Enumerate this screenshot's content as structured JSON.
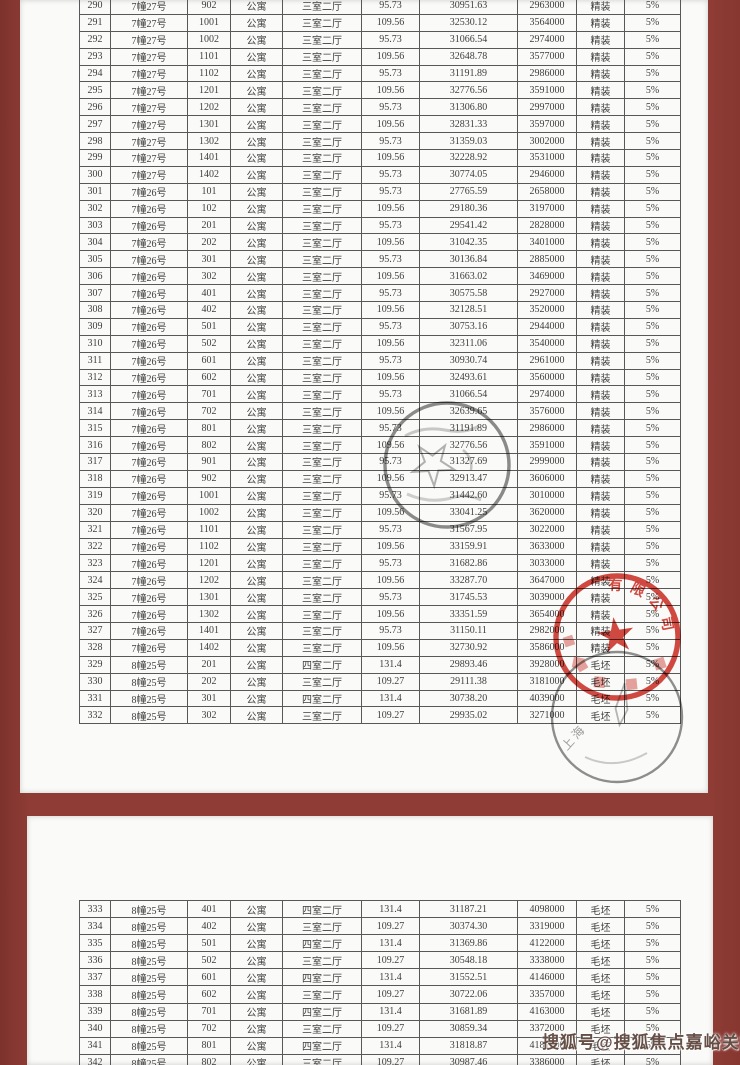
{
  "document": {
    "frame_color": "#8e3c35",
    "paper_color": "#fafaf8"
  },
  "price_table": {
    "page1_rows": [
      [
        "290",
        "7幢27号",
        "902",
        "公寓",
        "三室二厅",
        "95.73",
        "30951.63",
        "2963000",
        "精装",
        "5%"
      ],
      [
        "291",
        "7幢27号",
        "1001",
        "公寓",
        "三室二厅",
        "109.56",
        "32530.12",
        "3564000",
        "精装",
        "5%"
      ],
      [
        "292",
        "7幢27号",
        "1002",
        "公寓",
        "三室二厅",
        "95.73",
        "31066.54",
        "2974000",
        "精装",
        "5%"
      ],
      [
        "293",
        "7幢27号",
        "1101",
        "公寓",
        "三室二厅",
        "109.56",
        "32648.78",
        "3577000",
        "精装",
        "5%"
      ],
      [
        "294",
        "7幢27号",
        "1102",
        "公寓",
        "三室二厅",
        "95.73",
        "31191.89",
        "2986000",
        "精装",
        "5%"
      ],
      [
        "295",
        "7幢27号",
        "1201",
        "公寓",
        "三室二厅",
        "109.56",
        "32776.56",
        "3591000",
        "精装",
        "5%"
      ],
      [
        "296",
        "7幢27号",
        "1202",
        "公寓",
        "三室二厅",
        "95.73",
        "31306.80",
        "2997000",
        "精装",
        "5%"
      ],
      [
        "297",
        "7幢27号",
        "1301",
        "公寓",
        "三室二厅",
        "109.56",
        "32831.33",
        "3597000",
        "精装",
        "5%"
      ],
      [
        "298",
        "7幢27号",
        "1302",
        "公寓",
        "三室二厅",
        "95.73",
        "31359.03",
        "3002000",
        "精装",
        "5%"
      ],
      [
        "299",
        "7幢27号",
        "1401",
        "公寓",
        "三室二厅",
        "109.56",
        "32228.92",
        "3531000",
        "精装",
        "5%"
      ],
      [
        "300",
        "7幢27号",
        "1402",
        "公寓",
        "三室二厅",
        "95.73",
        "30774.05",
        "2946000",
        "精装",
        "5%"
      ],
      [
        "301",
        "7幢26号",
        "101",
        "公寓",
        "三室二厅",
        "95.73",
        "27765.59",
        "2658000",
        "精装",
        "5%"
      ],
      [
        "302",
        "7幢26号",
        "102",
        "公寓",
        "三室二厅",
        "109.56",
        "29180.36",
        "3197000",
        "精装",
        "5%"
      ],
      [
        "303",
        "7幢26号",
        "201",
        "公寓",
        "三室二厅",
        "95.73",
        "29541.42",
        "2828000",
        "精装",
        "5%"
      ],
      [
        "304",
        "7幢26号",
        "202",
        "公寓",
        "三室二厅",
        "109.56",
        "31042.35",
        "3401000",
        "精装",
        "5%"
      ],
      [
        "305",
        "7幢26号",
        "301",
        "公寓",
        "三室二厅",
        "95.73",
        "30136.84",
        "2885000",
        "精装",
        "5%"
      ],
      [
        "306",
        "7幢26号",
        "302",
        "公寓",
        "三室二厅",
        "109.56",
        "31663.02",
        "3469000",
        "精装",
        "5%"
      ],
      [
        "307",
        "7幢26号",
        "401",
        "公寓",
        "三室二厅",
        "95.73",
        "30575.58",
        "2927000",
        "精装",
        "5%"
      ],
      [
        "308",
        "7幢26号",
        "402",
        "公寓",
        "三室二厅",
        "109.56",
        "32128.51",
        "3520000",
        "精装",
        "5%"
      ],
      [
        "309",
        "7幢26号",
        "501",
        "公寓",
        "三室二厅",
        "95.73",
        "30753.16",
        "2944000",
        "精装",
        "5%"
      ],
      [
        "310",
        "7幢26号",
        "502",
        "公寓",
        "三室二厅",
        "109.56",
        "32311.06",
        "3540000",
        "精装",
        "5%"
      ],
      [
        "311",
        "7幢26号",
        "601",
        "公寓",
        "三室二厅",
        "95.73",
        "30930.74",
        "2961000",
        "精装",
        "5%"
      ],
      [
        "312",
        "7幢26号",
        "602",
        "公寓",
        "三室二厅",
        "109.56",
        "32493.61",
        "3560000",
        "精装",
        "5%"
      ],
      [
        "313",
        "7幢26号",
        "701",
        "公寓",
        "三室二厅",
        "95.73",
        "31066.54",
        "2974000",
        "精装",
        "5%"
      ],
      [
        "314",
        "7幢26号",
        "702",
        "公寓",
        "三室二厅",
        "109.56",
        "32639.65",
        "3576000",
        "精装",
        "5%"
      ],
      [
        "315",
        "7幢26号",
        "801",
        "公寓",
        "三室二厅",
        "95.73",
        "31191.89",
        "2986000",
        "精装",
        "5%"
      ],
      [
        "316",
        "7幢26号",
        "802",
        "公寓",
        "三室二厅",
        "109.56",
        "32776.56",
        "3591000",
        "精装",
        "5%"
      ],
      [
        "317",
        "7幢26号",
        "901",
        "公寓",
        "三室二厅",
        "95.73",
        "31327.69",
        "2999000",
        "精装",
        "5%"
      ],
      [
        "318",
        "7幢26号",
        "902",
        "公寓",
        "三室二厅",
        "109.56",
        "32913.47",
        "3606000",
        "精装",
        "5%"
      ],
      [
        "319",
        "7幢26号",
        "1001",
        "公寓",
        "三室二厅",
        "95.73",
        "31442.60",
        "3010000",
        "精装",
        "5%"
      ],
      [
        "320",
        "7幢26号",
        "1002",
        "公寓",
        "三室二厅",
        "109.56",
        "33041.25",
        "3620000",
        "精装",
        "5%"
      ],
      [
        "321",
        "7幢26号",
        "1101",
        "公寓",
        "三室二厅",
        "95.73",
        "31567.95",
        "3022000",
        "精装",
        "5%"
      ],
      [
        "322",
        "7幢26号",
        "1102",
        "公寓",
        "三室二厅",
        "109.56",
        "33159.91",
        "3633000",
        "精装",
        "5%"
      ],
      [
        "323",
        "7幢26号",
        "1201",
        "公寓",
        "三室二厅",
        "95.73",
        "31682.86",
        "3033000",
        "精装",
        "5%"
      ],
      [
        "324",
        "7幢26号",
        "1202",
        "公寓",
        "三室二厅",
        "109.56",
        "33287.70",
        "3647000",
        "精装",
        "5%"
      ],
      [
        "325",
        "7幢26号",
        "1301",
        "公寓",
        "三室二厅",
        "95.73",
        "31745.53",
        "3039000",
        "精装",
        "5%"
      ],
      [
        "326",
        "7幢26号",
        "1302",
        "公寓",
        "三室二厅",
        "109.56",
        "33351.59",
        "3654000",
        "精装",
        "5%"
      ],
      [
        "327",
        "7幢26号",
        "1401",
        "公寓",
        "三室二厅",
        "95.73",
        "31150.11",
        "2982000",
        "精装",
        "5%"
      ],
      [
        "328",
        "7幢26号",
        "1402",
        "公寓",
        "三室二厅",
        "109.56",
        "32730.92",
        "3586000",
        "精装",
        "5%"
      ],
      [
        "329",
        "8幢25号",
        "201",
        "公寓",
        "四室二厅",
        "131.4",
        "29893.46",
        "3928000",
        "毛坯",
        "5%"
      ],
      [
        "330",
        "8幢25号",
        "202",
        "公寓",
        "三室二厅",
        "109.27",
        "29111.38",
        "3181000",
        "毛坯",
        "5%"
      ],
      [
        "331",
        "8幢25号",
        "301",
        "公寓",
        "四室二厅",
        "131.4",
        "30738.20",
        "4039000",
        "毛坯",
        "5%"
      ],
      [
        "332",
        "8幢25号",
        "302",
        "公寓",
        "三室二厅",
        "109.27",
        "29935.02",
        "3271000",
        "毛坯",
        "5%"
      ]
    ],
    "page2_rows": [
      [
        "333",
        "8幢25号",
        "401",
        "公寓",
        "四室二厅",
        "131.4",
        "31187.21",
        "4098000",
        "毛坯",
        "5%"
      ],
      [
        "334",
        "8幢25号",
        "402",
        "公寓",
        "三室二厅",
        "109.27",
        "30374.30",
        "3319000",
        "毛坯",
        "5%"
      ],
      [
        "335",
        "8幢25号",
        "501",
        "公寓",
        "四室二厅",
        "131.4",
        "31369.86",
        "4122000",
        "毛坯",
        "5%"
      ],
      [
        "336",
        "8幢25号",
        "502",
        "公寓",
        "三室二厅",
        "109.27",
        "30548.18",
        "3338000",
        "毛坯",
        "5%"
      ],
      [
        "337",
        "8幢25号",
        "601",
        "公寓",
        "四室二厅",
        "131.4",
        "31552.51",
        "4146000",
        "毛坯",
        "5%"
      ],
      [
        "338",
        "8幢25号",
        "602",
        "公寓",
        "三室二厅",
        "109.27",
        "30722.06",
        "3357000",
        "毛坯",
        "5%"
      ],
      [
        "339",
        "8幢25号",
        "701",
        "公寓",
        "四室二厅",
        "131.4",
        "31681.89",
        "4163000",
        "毛坯",
        "5%"
      ],
      [
        "340",
        "8幢25号",
        "702",
        "公寓",
        "三室二厅",
        "109.27",
        "30859.34",
        "3372000",
        "毛坯",
        "5%"
      ],
      [
        "341",
        "8幢25号",
        "801",
        "公寓",
        "四室二厅",
        "131.4",
        "31818.87",
        "4181000",
        "毛坯",
        "5%"
      ],
      [
        "342",
        "8幢25号",
        "802",
        "公寓",
        "三室二厅",
        "109.27",
        "30987.46",
        "3386000",
        "毛坯",
        "5%"
      ]
    ]
  },
  "stamps": {
    "red_company_seal": {
      "legible_text": "有限公司",
      "color": "#ce3128"
    },
    "center_gray_seal": {
      "legible_text": ""
    },
    "bottom_gray_seal": {
      "legible_text": "上海"
    }
  },
  "watermark": {
    "text": "搜狐号@搜狐焦点嘉峪关站"
  }
}
